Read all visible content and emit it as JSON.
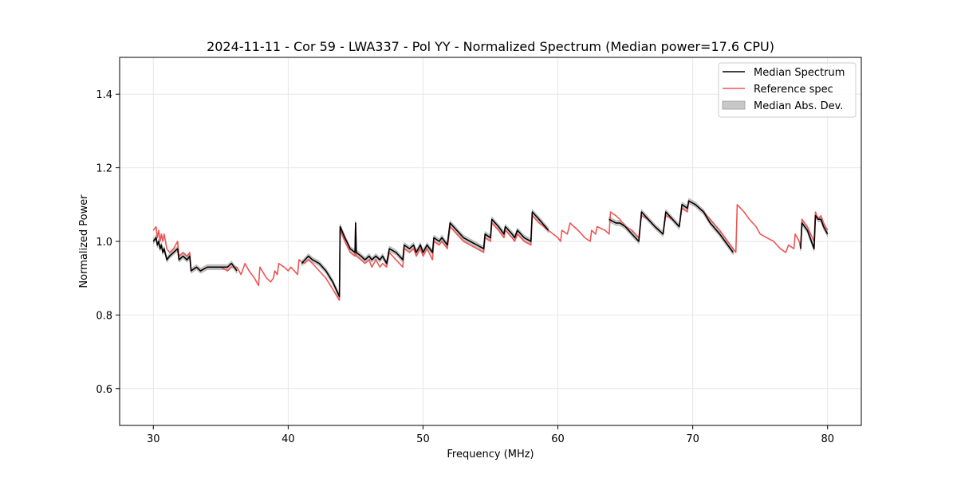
{
  "chart_data": {
    "type": "line",
    "title": "2024-11-11 - Cor 59 - LWA337 - Pol YY - Normalized Spectrum (Median power=17.6 CPU)",
    "xlabel": "Frequency (MHz)",
    "ylabel": "Normalized Power",
    "xlim": [
      27.5,
      82.5
    ],
    "ylim": [
      0.5,
      1.5
    ],
    "xticks": [
      30,
      40,
      50,
      60,
      70,
      80
    ],
    "yticks": [
      0.6,
      0.8,
      1.0,
      1.2,
      1.4
    ],
    "xtick_labels": [
      "30",
      "40",
      "50",
      "60",
      "70",
      "80"
    ],
    "ytick_labels": [
      "0.6",
      "0.8",
      "1.0",
      "1.2",
      "1.4"
    ],
    "grid": true,
    "legend_position": "top-right",
    "legend": [
      "Median Spectrum",
      "Reference spec",
      "Median Abs. Dev."
    ],
    "colors": {
      "median": "#000000",
      "reference": "#f05555",
      "mad": "#c8c8c8",
      "grid": "#e6e6e6"
    },
    "series": [
      {
        "name": "Reference spec",
        "segments": [
          [
            [
              30.0,
              1.03
            ],
            [
              30.2,
              1.04
            ],
            [
              30.3,
              1.01
            ],
            [
              30.4,
              1.03
            ],
            [
              30.5,
              1.0
            ],
            [
              30.6,
              1.02
            ],
            [
              30.7,
              1.0
            ],
            [
              30.8,
              1.02
            ],
            [
              31.0,
              0.98
            ],
            [
              31.2,
              0.97
            ],
            [
              31.5,
              0.98
            ],
            [
              31.8,
              1.0
            ],
            [
              31.9,
              0.96
            ],
            [
              32.2,
              0.97
            ],
            [
              32.5,
              0.96
            ],
            [
              32.7,
              0.97
            ],
            [
              32.8,
              0.92
            ],
            [
              33.2,
              0.93
            ],
            [
              33.5,
              0.92
            ],
            [
              34.0,
              0.93
            ],
            [
              35.0,
              0.93
            ],
            [
              35.5,
              0.92
            ],
            [
              35.8,
              0.93
            ],
            [
              36.2,
              0.93
            ],
            [
              36.5,
              0.91
            ],
            [
              36.8,
              0.94
            ],
            [
              37.1,
              0.92
            ],
            [
              37.5,
              0.9
            ],
            [
              37.8,
              0.88
            ],
            [
              37.9,
              0.93
            ],
            [
              38.4,
              0.9
            ],
            [
              38.7,
              0.89
            ],
            [
              38.9,
              0.9
            ],
            [
              39.0,
              0.92
            ],
            [
              39.2,
              0.91
            ],
            [
              39.3,
              0.94
            ],
            [
              39.7,
              0.93
            ],
            [
              40.0,
              0.92
            ],
            [
              40.2,
              0.93
            ],
            [
              40.7,
              0.91
            ],
            [
              40.8,
              0.95
            ],
            [
              41.2,
              0.94
            ],
            [
              41.5,
              0.95
            ],
            [
              41.8,
              0.94
            ],
            [
              42.3,
              0.92
            ],
            [
              42.8,
              0.9
            ],
            [
              43.3,
              0.87
            ],
            [
              43.8,
              0.84
            ],
            [
              43.85,
              1.03
            ],
            [
              44.2,
              1.0
            ],
            [
              44.6,
              0.97
            ],
            [
              44.95,
              0.96
            ],
            [
              45.0,
              1.05
            ],
            [
              45.05,
              0.96
            ],
            [
              45.4,
              0.95
            ],
            [
              45.7,
              0.94
            ],
            [
              46.0,
              0.95
            ],
            [
              46.2,
              0.93
            ],
            [
              46.5,
              0.95
            ],
            [
              46.8,
              0.93
            ],
            [
              47.0,
              0.94
            ],
            [
              47.3,
              0.93
            ],
            [
              47.5,
              0.97
            ],
            [
              48.0,
              0.95
            ],
            [
              48.5,
              0.93
            ],
            [
              48.6,
              0.98
            ],
            [
              49.0,
              0.97
            ],
            [
              49.3,
              0.98
            ],
            [
              49.5,
              0.96
            ],
            [
              49.8,
              0.98
            ],
            [
              50.0,
              0.96
            ],
            [
              50.3,
              0.98
            ],
            [
              50.7,
              0.95
            ],
            [
              50.8,
              1.0
            ],
            [
              51.2,
              0.99
            ],
            [
              51.4,
              1.0
            ],
            [
              51.8,
              0.98
            ],
            [
              52.0,
              1.04
            ],
            [
              52.5,
              1.02
            ],
            [
              53.0,
              1.0
            ],
            [
              53.5,
              0.99
            ],
            [
              54.0,
              0.98
            ],
            [
              54.5,
              0.97
            ],
            [
              54.6,
              1.01
            ],
            [
              55.0,
              1.0
            ],
            [
              55.1,
              1.05
            ],
            [
              55.6,
              1.03
            ],
            [
              56.0,
              1.01
            ],
            [
              56.1,
              1.03
            ],
            [
              56.6,
              1.01
            ],
            [
              56.8,
              1.0
            ],
            [
              57.0,
              1.02
            ],
            [
              57.5,
              1.0
            ],
            [
              58.0,
              0.99
            ],
            [
              58.1,
              1.07
            ],
            [
              58.6,
              1.05
            ],
            [
              59.3,
              1.03
            ],
            [
              60.0,
              1.01
            ],
            [
              60.2,
              1.0
            ],
            [
              60.3,
              1.03
            ],
            [
              60.7,
              1.02
            ],
            [
              60.9,
              1.05
            ],
            [
              61.5,
              1.03
            ],
            [
              62.0,
              1.01
            ],
            [
              62.4,
              1.0
            ],
            [
              62.5,
              1.03
            ],
            [
              62.8,
              1.02
            ],
            [
              62.9,
              1.04
            ],
            [
              63.5,
              1.03
            ],
            [
              63.8,
              1.02
            ],
            [
              63.9,
              1.08
            ],
            [
              64.3,
              1.07
            ],
            [
              64.6,
              1.06
            ],
            [
              65.0,
              1.04
            ],
            [
              65.5,
              1.03
            ],
            [
              66.0,
              1.01
            ],
            [
              66.2,
              1.07
            ],
            [
              66.7,
              1.06
            ],
            [
              67.2,
              1.04
            ],
            [
              67.8,
              1.02
            ],
            [
              68.0,
              1.07
            ],
            [
              68.5,
              1.06
            ],
            [
              69.0,
              1.04
            ],
            [
              69.2,
              1.09
            ],
            [
              69.6,
              1.08
            ],
            [
              69.7,
              1.11
            ],
            [
              70.2,
              1.1
            ],
            [
              70.8,
              1.08
            ],
            [
              71.3,
              1.06
            ],
            [
              72.0,
              1.03
            ],
            [
              72.6,
              1.0
            ],
            [
              73.2,
              0.97
            ],
            [
              73.3,
              1.1
            ],
            [
              73.8,
              1.08
            ],
            [
              74.2,
              1.06
            ],
            [
              74.7,
              1.04
            ],
            [
              75.0,
              1.02
            ],
            [
              75.5,
              1.01
            ],
            [
              76.0,
              1.0
            ],
            [
              76.5,
              0.98
            ],
            [
              76.9,
              0.97
            ],
            [
              77.1,
              0.99
            ],
            [
              77.5,
              0.98
            ],
            [
              77.6,
              1.02
            ],
            [
              77.9,
              1.0
            ],
            [
              78.0,
              0.98
            ],
            [
              78.1,
              1.06
            ],
            [
              78.5,
              1.04
            ],
            [
              79.0,
              1.0
            ],
            [
              79.1,
              1.08
            ],
            [
              79.3,
              1.06
            ],
            [
              79.5,
              1.07
            ],
            [
              79.7,
              1.05
            ],
            [
              80.0,
              1.03
            ]
          ]
        ]
      },
      {
        "name": "Median Spectrum",
        "segments": [
          [
            [
              30.0,
              1.0
            ],
            [
              30.2,
              1.01
            ],
            [
              30.3,
              0.99
            ],
            [
              30.4,
              1.0
            ],
            [
              30.5,
              0.98
            ],
            [
              30.6,
              0.99
            ],
            [
              30.7,
              0.97
            ],
            [
              30.8,
              0.98
            ],
            [
              31.0,
              0.95
            ],
            [
              31.2,
              0.96
            ],
            [
              31.5,
              0.97
            ],
            [
              31.8,
              0.98
            ],
            [
              31.9,
              0.95
            ],
            [
              32.2,
              0.96
            ],
            [
              32.5,
              0.95
            ],
            [
              32.7,
              0.96
            ],
            [
              32.8,
              0.92
            ],
            [
              33.2,
              0.93
            ],
            [
              33.5,
              0.92
            ],
            [
              34.0,
              0.93
            ],
            [
              35.0,
              0.93
            ],
            [
              35.5,
              0.93
            ],
            [
              35.8,
              0.94
            ],
            [
              36.2,
              0.92
            ]
          ],
          [
            [
              41.0,
              0.94
            ],
            [
              41.5,
              0.96
            ],
            [
              41.8,
              0.95
            ],
            [
              42.3,
              0.94
            ],
            [
              42.8,
              0.92
            ],
            [
              43.3,
              0.89
            ],
            [
              43.8,
              0.85
            ],
            [
              43.85,
              1.04
            ],
            [
              44.2,
              1.01
            ],
            [
              44.6,
              0.98
            ],
            [
              44.95,
              0.97
            ],
            [
              45.0,
              1.05
            ],
            [
              45.05,
              0.97
            ],
            [
              45.4,
              0.96
            ],
            [
              45.7,
              0.95
            ],
            [
              46.0,
              0.96
            ],
            [
              46.2,
              0.95
            ],
            [
              46.5,
              0.96
            ],
            [
              46.8,
              0.95
            ],
            [
              47.0,
              0.96
            ],
            [
              47.3,
              0.94
            ],
            [
              47.5,
              0.98
            ],
            [
              48.0,
              0.97
            ],
            [
              48.5,
              0.95
            ],
            [
              48.6,
              0.99
            ],
            [
              49.0,
              0.98
            ],
            [
              49.3,
              0.99
            ],
            [
              49.5,
              0.97
            ],
            [
              49.8,
              0.99
            ],
            [
              50.0,
              0.97
            ],
            [
              50.3,
              0.99
            ],
            [
              50.7,
              0.97
            ],
            [
              50.8,
              1.01
            ],
            [
              51.2,
              1.0
            ],
            [
              51.4,
              1.01
            ],
            [
              51.8,
              0.99
            ],
            [
              52.0,
              1.05
            ],
            [
              52.5,
              1.03
            ],
            [
              53.0,
              1.01
            ],
            [
              53.5,
              1.0
            ],
            [
              54.0,
              0.99
            ],
            [
              54.5,
              0.98
            ],
            [
              54.6,
              1.02
            ],
            [
              55.0,
              1.01
            ],
            [
              55.1,
              1.06
            ],
            [
              55.6,
              1.04
            ],
            [
              56.0,
              1.02
            ],
            [
              56.1,
              1.04
            ],
            [
              56.6,
              1.02
            ],
            [
              56.8,
              1.01
            ],
            [
              57.0,
              1.03
            ],
            [
              57.5,
              1.01
            ],
            [
              58.0,
              1.0
            ],
            [
              58.1,
              1.08
            ],
            [
              58.6,
              1.06
            ],
            [
              59.3,
              1.03
            ]
          ],
          [
            [
              63.8,
              1.06
            ],
            [
              64.3,
              1.05
            ],
            [
              64.6,
              1.05
            ],
            [
              65.0,
              1.04
            ],
            [
              65.5,
              1.02
            ],
            [
              66.0,
              1.0
            ],
            [
              66.2,
              1.08
            ],
            [
              66.7,
              1.06
            ],
            [
              67.2,
              1.04
            ],
            [
              67.8,
              1.02
            ],
            [
              68.0,
              1.08
            ],
            [
              68.5,
              1.06
            ],
            [
              69.0,
              1.04
            ],
            [
              69.2,
              1.1
            ],
            [
              69.6,
              1.09
            ],
            [
              69.7,
              1.11
            ],
            [
              70.2,
              1.1
            ],
            [
              70.8,
              1.08
            ],
            [
              71.3,
              1.05
            ],
            [
              72.0,
              1.02
            ],
            [
              72.6,
              0.99
            ],
            [
              73.0,
              0.97
            ]
          ],
          [
            [
              78.0,
              0.98
            ],
            [
              78.1,
              1.05
            ],
            [
              78.5,
              1.03
            ],
            [
              79.0,
              0.98
            ],
            [
              79.1,
              1.07
            ],
            [
              79.3,
              1.06
            ],
            [
              79.5,
              1.06
            ],
            [
              79.7,
              1.04
            ],
            [
              80.0,
              1.02
            ]
          ]
        ]
      }
    ],
    "mad_halfwidth": 0.007
  }
}
